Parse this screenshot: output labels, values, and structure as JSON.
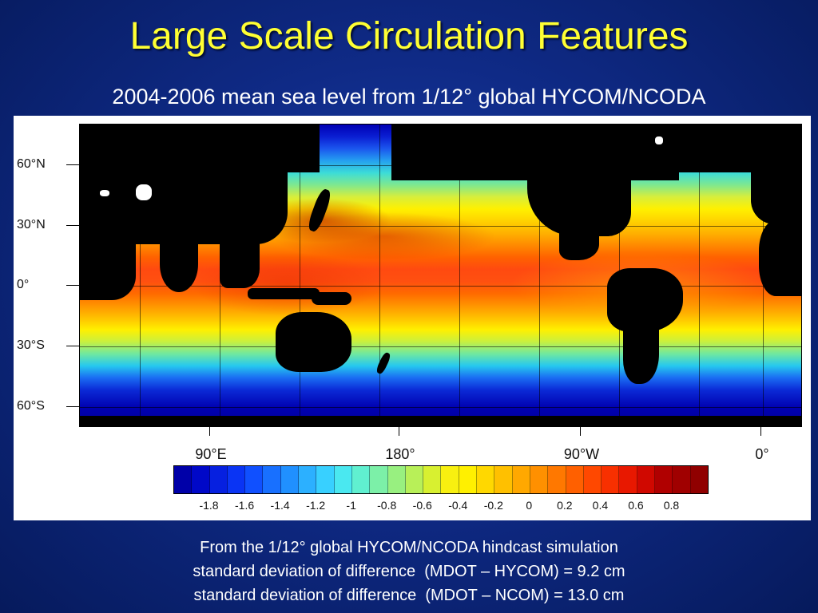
{
  "slide": {
    "title": "Large Scale Circulation Features",
    "subtitle": "2004-2006 mean sea level from 1/12° global HYCOM/NCODA"
  },
  "map": {
    "lat_labels": [
      "60°N",
      "30°N",
      "0°",
      "30°S",
      "60°S"
    ],
    "lon_labels": [
      "90°E",
      "180°",
      "90°W",
      "0°"
    ],
    "colorbar": {
      "tick_labels": [
        "-1.8",
        "-1.6",
        "-1.4",
        "-1.2",
        "-1",
        "-0.8",
        "-0.6",
        "-0.4",
        "-0.2",
        "0",
        "0.2",
        "0.4",
        "0.6",
        "0.8"
      ],
      "colors": [
        "#0000a8",
        "#0008c8",
        "#0620e0",
        "#0a34f4",
        "#1050ff",
        "#1870ff",
        "#2090ff",
        "#2cb0ff",
        "#38d0ff",
        "#4ae8f0",
        "#60f0d0",
        "#7cf0a8",
        "#98f080",
        "#b8f058",
        "#d8f030",
        "#f8f010",
        "#fff000",
        "#ffd800",
        "#ffc000",
        "#ffa800",
        "#ff9000",
        "#ff7800",
        "#ff6000",
        "#ff4800",
        "#f83000",
        "#e81800",
        "#d00800",
        "#b00000",
        "#a00000",
        "#900000"
      ]
    }
  },
  "caption": {
    "line1": "From the 1/12° global HYCOM/NCODA hindcast simulation",
    "line2": "standard deviation of difference  (MDOT – HYCOM) = 9.2 cm",
    "line3": "standard deviation of difference  (MDOT – NCOM) = 13.0 cm"
  }
}
